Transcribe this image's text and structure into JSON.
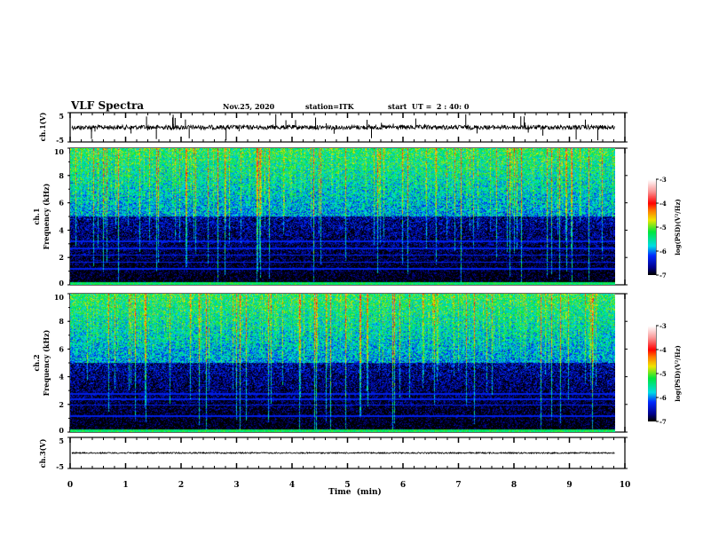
{
  "header": {
    "title": "VLF Spectra",
    "date": "Nov.25, 2020",
    "station": "station=ITK",
    "start_ut": "start  UT =  2 : 40: 0"
  },
  "chart_data": [
    {
      "type": "line",
      "name": "ch1-waveform",
      "ylabel": "ch.1(V)",
      "ylim": [
        -5,
        5
      ],
      "yticks": [
        "5",
        "-5"
      ],
      "xlim": [
        0,
        10
      ],
      "description_level": 0
    },
    {
      "type": "heatmap",
      "name": "ch1-spectrogram",
      "ylabel": "ch.1\nFrequency (kHz)",
      "ylabel_lines": [
        "ch.1",
        "Frequency (kHz)"
      ],
      "ylim": [
        0,
        10
      ],
      "yticks": [
        "0",
        "2",
        "4",
        "6",
        "8",
        "10"
      ],
      "xlim": [
        0,
        10
      ],
      "horizontal_lines_khz": [
        0.2,
        1.2,
        1.7,
        2.2,
        2.7,
        3.2
      ],
      "colorbar": {
        "label": "log(PSD)(V²/Hz)",
        "range": [
          -7,
          -3
        ],
        "ticks": [
          "-3",
          "-4",
          "-5",
          "-6",
          "-7"
        ]
      }
    },
    {
      "type": "heatmap",
      "name": "ch2-spectrogram",
      "ylabel_lines": [
        "ch.2",
        "Frequency (kHz)"
      ],
      "ylim": [
        0,
        10
      ],
      "yticks": [
        "0",
        "2",
        "4",
        "6",
        "8",
        "10"
      ],
      "xlim": [
        0,
        10
      ],
      "horizontal_lines_khz": [
        0.2,
        1.2,
        2.0,
        2.4,
        2.8,
        5.2
      ],
      "colorbar": {
        "label": "log(PSD)(V²/Hz)",
        "range": [
          -7,
          -3
        ],
        "ticks": [
          "-3",
          "-4",
          "-5",
          "-6",
          "-7"
        ]
      }
    },
    {
      "type": "line",
      "name": "ch3-waveform",
      "ylabel": "ch.3(V)",
      "ylim": [
        -5,
        5
      ],
      "yticks": [
        "5",
        "-5"
      ],
      "xlim": [
        0,
        10
      ]
    }
  ],
  "xaxis": {
    "label": "Time  (min)",
    "ticks": [
      "0",
      "1",
      "2",
      "3",
      "4",
      "5",
      "6",
      "7",
      "8",
      "9",
      "10"
    ]
  }
}
